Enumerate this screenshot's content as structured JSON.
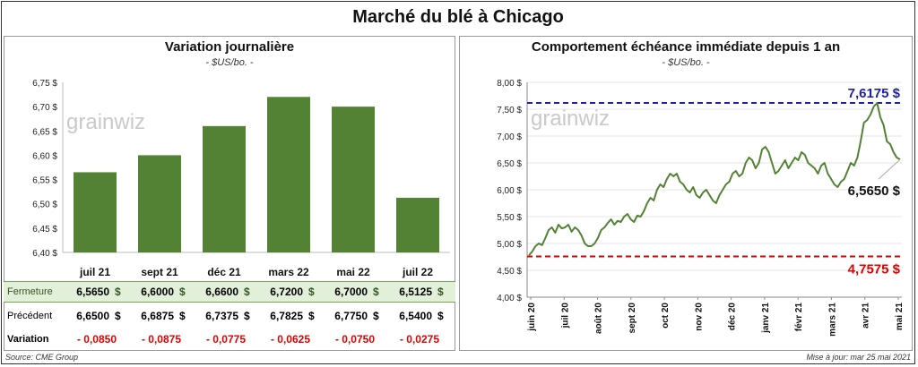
{
  "title": "Marché du blé à Chicago",
  "watermark": "grainwiz",
  "left_chart": {
    "title": "Variation journalière",
    "unit": "- $US/bo. -"
  },
  "right_chart": {
    "title": "Comportement échéance immédiate depuis 1 an",
    "unit": "- $US/bo. -",
    "max_label": "7,6175 $",
    "min_label": "4,7575 $",
    "last_label": "6,5650 $"
  },
  "table": {
    "rows": {
      "close_label": "Fermeture",
      "prev_label": "Précédent",
      "var_label": "Variation"
    },
    "currency": "$",
    "close": [
      "6,5650",
      "6,6000",
      "6,6600",
      "6,7200",
      "6,7000",
      "6,5125"
    ],
    "prev": [
      "6,6500",
      "6,6875",
      "6,7375",
      "6,7825",
      "6,7750",
      "6,5400"
    ],
    "var": [
      "- 0,0850",
      "- 0,0875",
      "- 0,0775",
      "- 0,0625",
      "- 0,0750",
      "- 0,0275"
    ]
  },
  "footer": {
    "source": "Source: CME Group",
    "updated": "Mise à jour: mar 25 mai 2021"
  },
  "colors": {
    "bar": "#548235",
    "line": "#548235",
    "max_line": "#1f1fa8",
    "min_line": "#e00000"
  },
  "chart_data": [
    {
      "type": "bar",
      "title": "Variation journalière",
      "ylabel": "$US/bo.",
      "categories": [
        "juil 21",
        "sept 21",
        "déc 21",
        "mars 22",
        "mai 22",
        "juil 22"
      ],
      "values": [
        6.565,
        6.6,
        6.66,
        6.72,
        6.7,
        6.5125
      ],
      "ylim": [
        6.4,
        6.75
      ],
      "yticks": [
        "6,40 $",
        "6,45 $",
        "6,50 $",
        "6,55 $",
        "6,60 $",
        "6,65 $",
        "6,70 $",
        "6,75 $"
      ],
      "grid": false
    },
    {
      "type": "line",
      "title": "Comportement échéance immédiate depuis 1 an",
      "ylabel": "$US/bo.",
      "x_ticks": [
        "juin 20",
        "juil 20",
        "août 20",
        "sept 20",
        "oct 20",
        "nov 20",
        "déc 20",
        "janv 21",
        "févr 21",
        "mars 21",
        "avr 21",
        "mai 21"
      ],
      "ylim": [
        4.0,
        8.0
      ],
      "yticks": [
        "4,00 $",
        "4,50 $",
        "5,00 $",
        "5,50 $",
        "6,00 $",
        "6,50 $",
        "7,00 $",
        "7,50 $",
        "8,00 $"
      ],
      "max_value": 7.6175,
      "min_value": 4.7575,
      "last_value": 6.565,
      "series": [
        {
          "values": [
            4.78,
            4.85,
            4.95,
            5.0,
            4.97,
            5.1,
            5.25,
            5.3,
            5.2,
            5.35,
            5.28,
            5.3,
            5.35,
            5.22,
            5.3,
            5.25,
            5.15,
            5.0,
            4.95,
            4.95,
            5.0,
            5.1,
            5.25,
            5.3,
            5.38,
            5.45,
            5.35,
            5.42,
            5.4,
            5.5,
            5.55,
            5.45,
            5.4,
            5.52,
            5.5,
            5.6,
            5.75,
            5.85,
            5.8,
            6.0,
            6.1,
            6.05,
            6.2,
            6.3,
            6.25,
            6.3,
            6.15,
            6.1,
            6.0,
            5.95,
            6.05,
            5.9,
            5.85,
            5.95,
            6.0,
            5.9,
            5.8,
            5.75,
            5.9,
            6.0,
            6.1,
            6.15,
            6.3,
            6.35,
            6.25,
            6.3,
            6.5,
            6.6,
            6.55,
            6.4,
            6.5,
            6.75,
            6.8,
            6.7,
            6.5,
            6.3,
            6.35,
            6.45,
            6.55,
            6.4,
            6.5,
            6.6,
            6.55,
            6.7,
            6.65,
            6.5,
            6.45,
            6.4,
            6.3,
            6.45,
            6.5,
            6.3,
            6.2,
            6.1,
            6.05,
            6.15,
            6.2,
            6.35,
            6.5,
            6.45,
            6.6,
            6.9,
            7.25,
            7.3,
            7.4,
            7.55,
            7.6175,
            7.35,
            7.2,
            6.9,
            6.85,
            6.7,
            6.6,
            6.565
          ]
        }
      ]
    }
  ]
}
